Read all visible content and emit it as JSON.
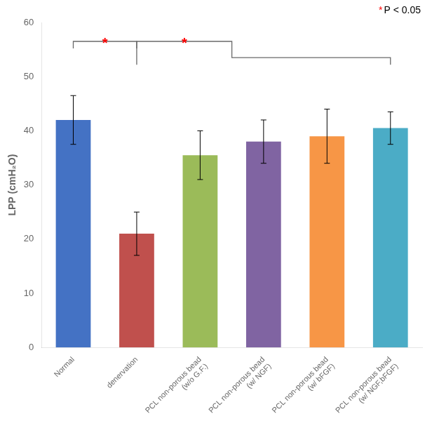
{
  "chart_data": {
    "type": "bar",
    "categories": [
      "Normal",
      "denervation",
      "PCL non-porous bead\n(w/o G.F.)",
      "PCL non-porous bead\n(w/ NGF)",
      "PCL non-porous bead\n(w/ bFGF)",
      "PCL non-porous bead\n(w/ NGF,bFGF)"
    ],
    "values": [
      42.0,
      21.0,
      35.5,
      38.0,
      39.0,
      40.5
    ],
    "errors": [
      4.5,
      4.0,
      4.5,
      4.0,
      5.0,
      3.0
    ],
    "colors": [
      "#4472C4",
      "#C0504D",
      "#9BBB59",
      "#8064A2",
      "#F79646",
      "#4BACC6"
    ],
    "ylabel": "LPP (cmH₂O)",
    "ylim": [
      0,
      60
    ],
    "yticks": [
      0,
      10,
      20,
      30,
      40,
      50,
      60
    ],
    "grid": false,
    "annotations": [
      {
        "text": "*",
        "color": "red",
        "from": "Normal",
        "to": "denervation",
        "y": 56.5
      },
      {
        "text": "*",
        "color": "red",
        "from": "denervation",
        "to": "PCL non-porous bead\n(w/ NGF,bFGF)",
        "y": [
          56.5,
          53.5
        ]
      },
      {
        "parts": [
          {
            "text": "*",
            "color": "red"
          },
          {
            "text": "P < 0.05",
            "color": "black"
          }
        ]
      }
    ]
  }
}
